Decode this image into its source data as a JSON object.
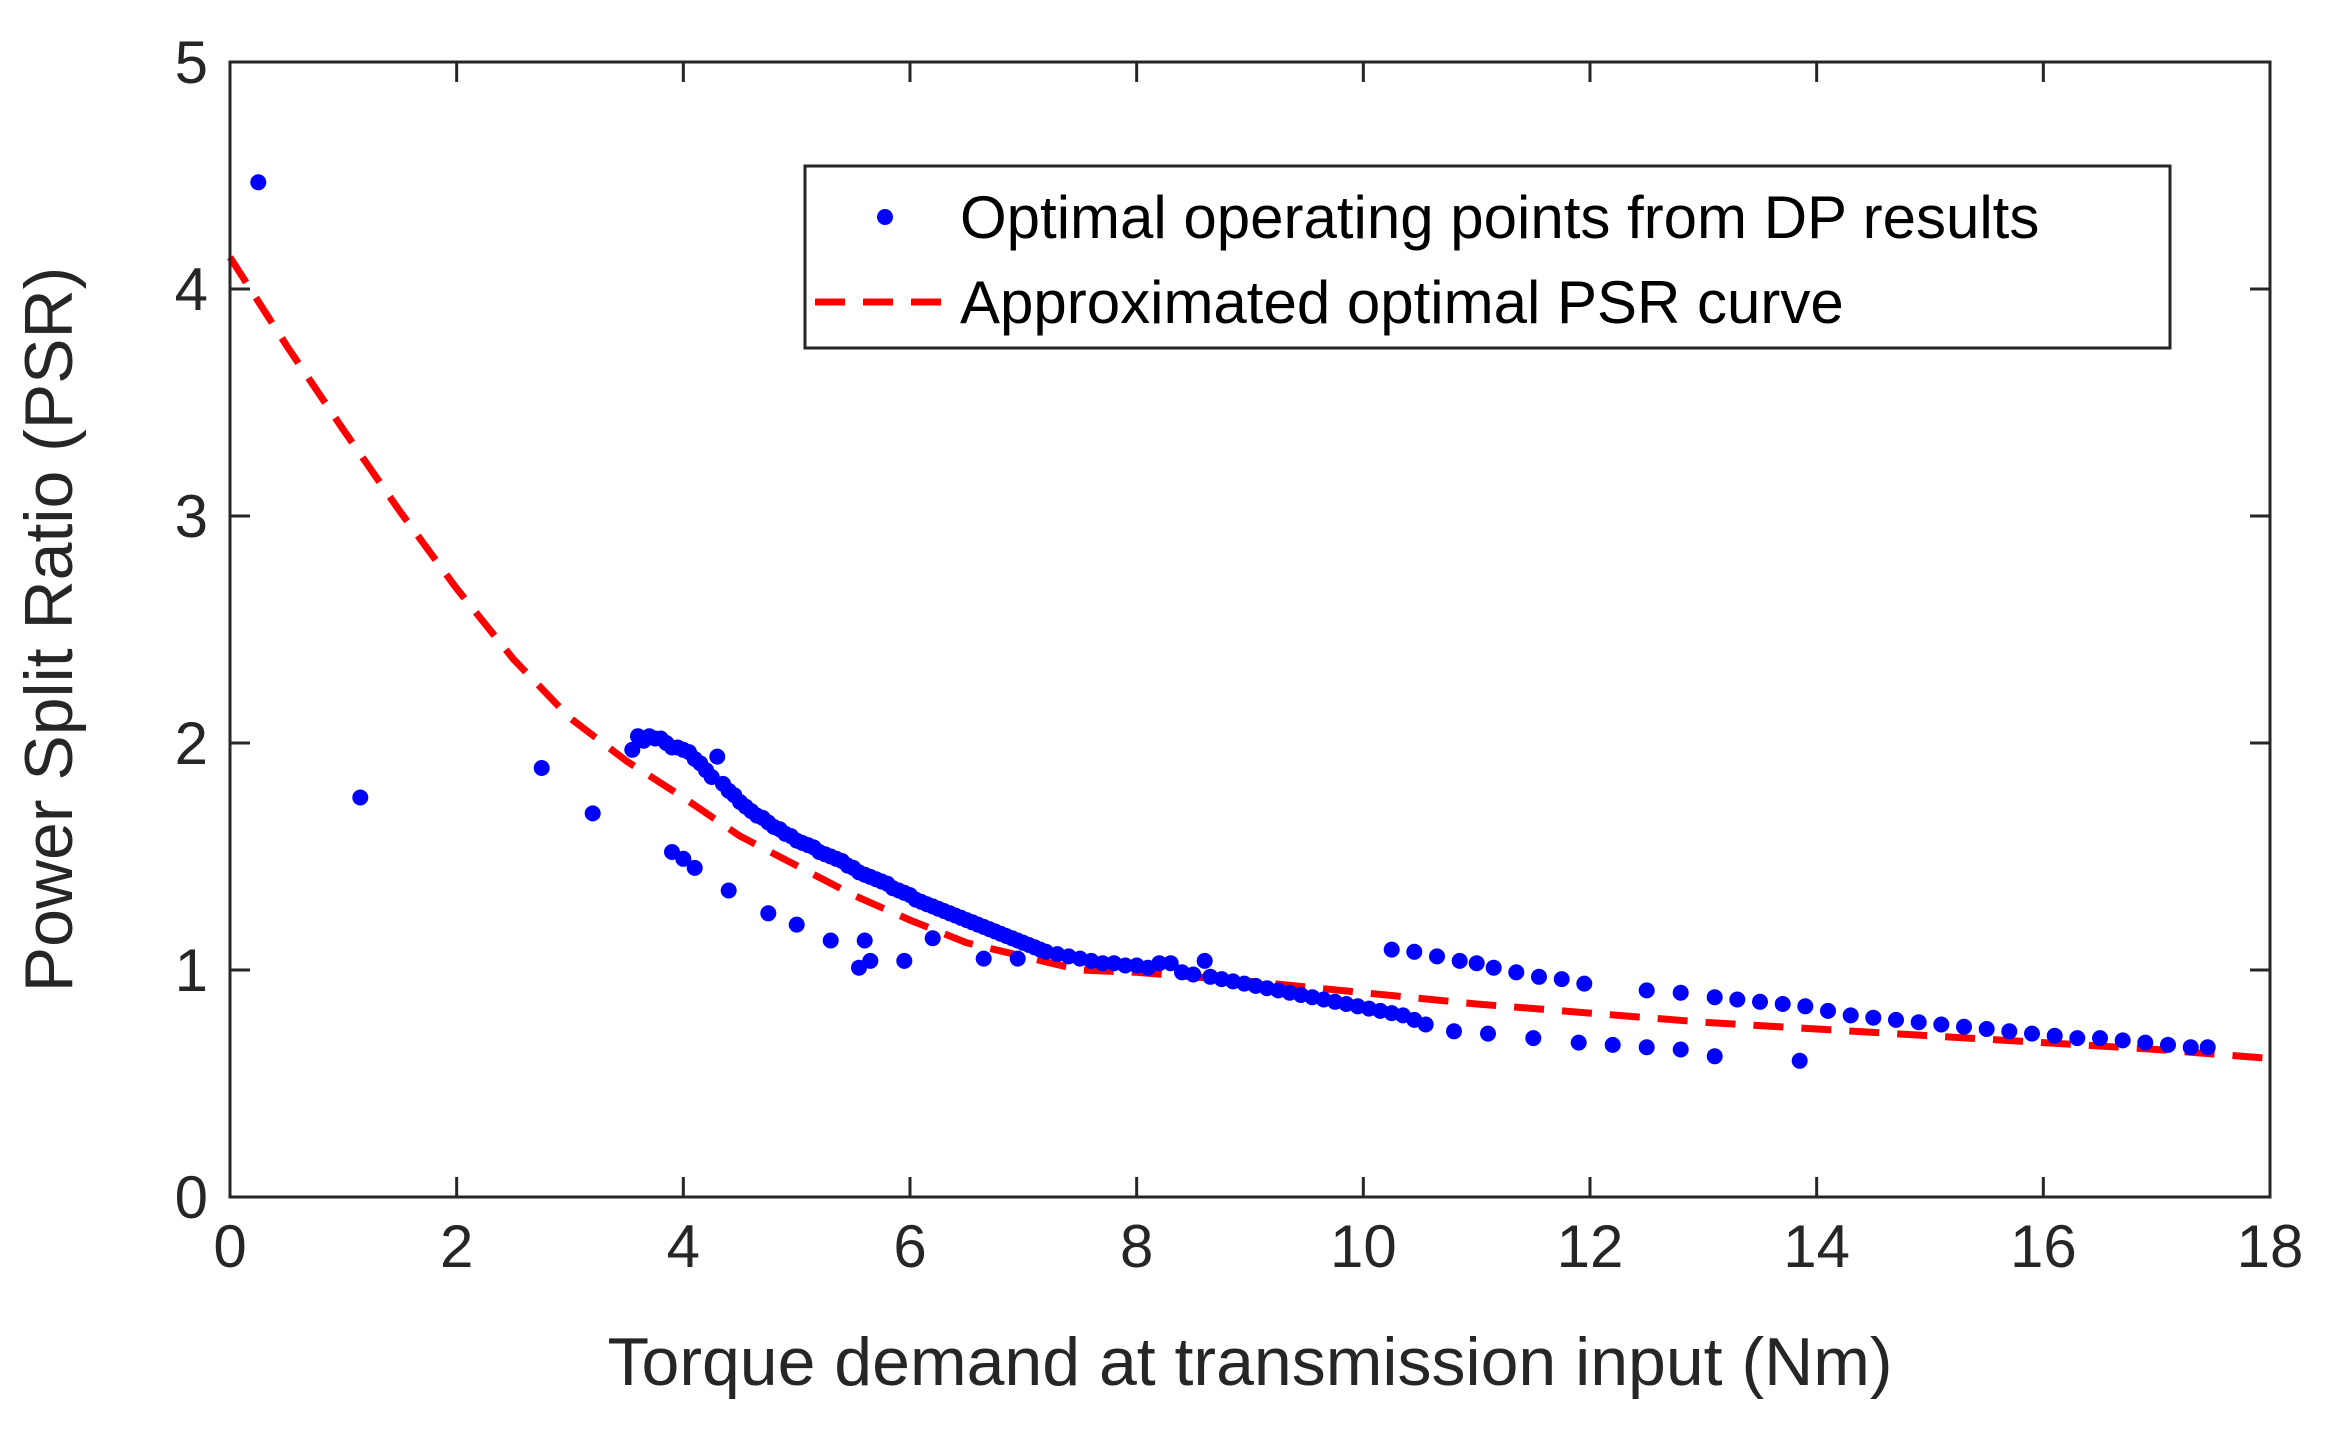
{
  "chart_data": {
    "type": "scatter",
    "title": "",
    "xlabel": "Torque demand at transmission input (Nm)",
    "ylabel": "Power Split Ratio (PSR)",
    "xlim": [
      0,
      18
    ],
    "ylim": [
      0,
      5
    ],
    "xticks": [
      "0",
      "2",
      "4",
      "6",
      "8",
      "10",
      "12",
      "14",
      "16",
      "18"
    ],
    "yticks": [
      "0",
      "1",
      "2",
      "3",
      "4",
      "5"
    ],
    "legend_position": "top-right",
    "colors": {
      "points": "#0000ff",
      "curve": "#ff0000",
      "axes": "#262626"
    },
    "series": [
      {
        "name": "Optimal operating points from DP results",
        "style": "dots",
        "points": [
          [
            0.25,
            4.47
          ],
          [
            1.15,
            1.76
          ],
          [
            2.75,
            1.89
          ],
          [
            3.2,
            1.69
          ],
          [
            3.55,
            1.97
          ],
          [
            3.6,
            2.03
          ],
          [
            3.65,
            2.01
          ],
          [
            3.7,
            2.03
          ],
          [
            3.75,
            2.02
          ],
          [
            3.8,
            2.02
          ],
          [
            3.85,
            2.0
          ],
          [
            3.9,
            1.98
          ],
          [
            3.95,
            1.98
          ],
          [
            4.0,
            1.97
          ],
          [
            4.05,
            1.96
          ],
          [
            4.1,
            1.93
          ],
          [
            4.15,
            1.91
          ],
          [
            4.2,
            1.88
          ],
          [
            4.25,
            1.85
          ],
          [
            4.3,
            1.94
          ],
          [
            4.35,
            1.82
          ],
          [
            4.4,
            1.79
          ],
          [
            4.45,
            1.77
          ],
          [
            4.5,
            1.74
          ],
          [
            4.55,
            1.72
          ],
          [
            4.6,
            1.7
          ],
          [
            4.65,
            1.68
          ],
          [
            4.7,
            1.67
          ],
          [
            4.75,
            1.65
          ],
          [
            4.8,
            1.63
          ],
          [
            4.85,
            1.62
          ],
          [
            4.9,
            1.6
          ],
          [
            4.95,
            1.59
          ],
          [
            5.0,
            1.57
          ],
          [
            5.05,
            1.56
          ],
          [
            5.1,
            1.55
          ],
          [
            5.15,
            1.54
          ],
          [
            5.2,
            1.52
          ],
          [
            5.25,
            1.51
          ],
          [
            5.3,
            1.5
          ],
          [
            5.35,
            1.49
          ],
          [
            5.4,
            1.48
          ],
          [
            5.45,
            1.46
          ],
          [
            5.5,
            1.45
          ],
          [
            5.55,
            1.43
          ],
          [
            5.6,
            1.42
          ],
          [
            5.65,
            1.41
          ],
          [
            5.7,
            1.4
          ],
          [
            5.75,
            1.39
          ],
          [
            5.8,
            1.38
          ],
          [
            5.85,
            1.36
          ],
          [
            5.9,
            1.35
          ],
          [
            5.95,
            1.34
          ],
          [
            6.0,
            1.33
          ],
          [
            6.05,
            1.31
          ],
          [
            6.1,
            1.3
          ],
          [
            6.15,
            1.29
          ],
          [
            6.2,
            1.28
          ],
          [
            6.25,
            1.27
          ],
          [
            6.3,
            1.26
          ],
          [
            6.35,
            1.25
          ],
          [
            6.4,
            1.24
          ],
          [
            6.45,
            1.23
          ],
          [
            6.5,
            1.22
          ],
          [
            6.55,
            1.21
          ],
          [
            6.6,
            1.2
          ],
          [
            6.65,
            1.19
          ],
          [
            6.7,
            1.18
          ],
          [
            6.75,
            1.17
          ],
          [
            6.8,
            1.16
          ],
          [
            6.85,
            1.15
          ],
          [
            6.9,
            1.14
          ],
          [
            6.95,
            1.13
          ],
          [
            7.0,
            1.12
          ],
          [
            7.05,
            1.11
          ],
          [
            7.1,
            1.1
          ],
          [
            7.15,
            1.09
          ],
          [
            7.2,
            1.08
          ],
          [
            7.3,
            1.07
          ],
          [
            7.4,
            1.06
          ],
          [
            7.5,
            1.05
          ],
          [
            7.6,
            1.04
          ],
          [
            7.7,
            1.03
          ],
          [
            7.8,
            1.03
          ],
          [
            7.9,
            1.02
          ],
          [
            8.0,
            1.02
          ],
          [
            8.1,
            1.01
          ],
          [
            8.2,
            1.03
          ],
          [
            8.3,
            1.03
          ],
          [
            8.4,
            0.99
          ],
          [
            8.5,
            0.98
          ],
          [
            8.6,
            1.04
          ],
          [
            8.65,
            0.97
          ],
          [
            8.75,
            0.96
          ],
          [
            8.85,
            0.95
          ],
          [
            8.95,
            0.94
          ],
          [
            9.05,
            0.93
          ],
          [
            9.15,
            0.92
          ],
          [
            9.25,
            0.91
          ],
          [
            9.35,
            0.9
          ],
          [
            9.45,
            0.89
          ],
          [
            9.55,
            0.88
          ],
          [
            9.65,
            0.87
          ],
          [
            9.75,
            0.86
          ],
          [
            9.85,
            0.85
          ],
          [
            9.95,
            0.84
          ],
          [
            10.05,
            0.83
          ],
          [
            10.15,
            0.82
          ],
          [
            10.25,
            0.81
          ],
          [
            10.35,
            0.8
          ],
          [
            10.45,
            0.78
          ],
          [
            10.55,
            0.76
          ],
          [
            10.25,
            1.09
          ],
          [
            10.45,
            1.08
          ],
          [
            10.65,
            1.06
          ],
          [
            10.85,
            1.04
          ],
          [
            11.0,
            1.03
          ],
          [
            11.15,
            1.01
          ],
          [
            11.35,
            0.99
          ],
          [
            11.55,
            0.97
          ],
          [
            11.75,
            0.96
          ],
          [
            11.95,
            0.94
          ],
          [
            10.8,
            0.73
          ],
          [
            11.1,
            0.72
          ],
          [
            11.5,
            0.7
          ],
          [
            11.9,
            0.68
          ],
          [
            12.2,
            0.67
          ],
          [
            12.5,
            0.66
          ],
          [
            12.8,
            0.65
          ],
          [
            13.1,
            0.62
          ],
          [
            13.85,
            0.6
          ],
          [
            3.9,
            1.52
          ],
          [
            4.0,
            1.49
          ],
          [
            4.1,
            1.45
          ],
          [
            4.4,
            1.35
          ],
          [
            4.75,
            1.25
          ],
          [
            5.0,
            1.2
          ],
          [
            5.3,
            1.13
          ],
          [
            5.55,
            1.01
          ],
          [
            5.6,
            1.13
          ],
          [
            5.65,
            1.04
          ],
          [
            5.95,
            1.04
          ],
          [
            6.2,
            1.14
          ],
          [
            6.65,
            1.05
          ],
          [
            6.95,
            1.05
          ],
          [
            12.5,
            0.91
          ],
          [
            12.8,
            0.9
          ],
          [
            13.1,
            0.88
          ],
          [
            13.3,
            0.87
          ],
          [
            13.5,
            0.86
          ],
          [
            13.7,
            0.85
          ],
          [
            13.9,
            0.84
          ],
          [
            14.1,
            0.82
          ],
          [
            14.3,
            0.8
          ],
          [
            14.5,
            0.79
          ],
          [
            14.7,
            0.78
          ],
          [
            14.9,
            0.77
          ],
          [
            15.1,
            0.76
          ],
          [
            15.3,
            0.75
          ],
          [
            15.5,
            0.74
          ],
          [
            15.7,
            0.73
          ],
          [
            15.9,
            0.72
          ],
          [
            16.1,
            0.71
          ],
          [
            16.3,
            0.7
          ],
          [
            16.5,
            0.7
          ],
          [
            16.7,
            0.69
          ],
          [
            16.9,
            0.68
          ],
          [
            17.1,
            0.67
          ],
          [
            17.3,
            0.66
          ],
          [
            17.45,
            0.66
          ]
        ]
      },
      {
        "name": "Approximated optimal PSR curve",
        "style": "dashed-line",
        "x": [
          0,
          0.5,
          1,
          1.5,
          2,
          2.5,
          3,
          3.5,
          4,
          4.5,
          5,
          5.5,
          6,
          6.5,
          7,
          7.5,
          8,
          9,
          10,
          11,
          12,
          13,
          14,
          15,
          16,
          17,
          18
        ],
        "y": [
          4.14,
          3.75,
          3.38,
          3.02,
          2.68,
          2.37,
          2.11,
          1.92,
          1.76,
          1.59,
          1.46,
          1.33,
          1.22,
          1.12,
          1.06,
          1.0,
          0.99,
          0.95,
          0.9,
          0.85,
          0.81,
          0.77,
          0.74,
          0.71,
          0.68,
          0.65,
          0.61
        ]
      }
    ]
  }
}
